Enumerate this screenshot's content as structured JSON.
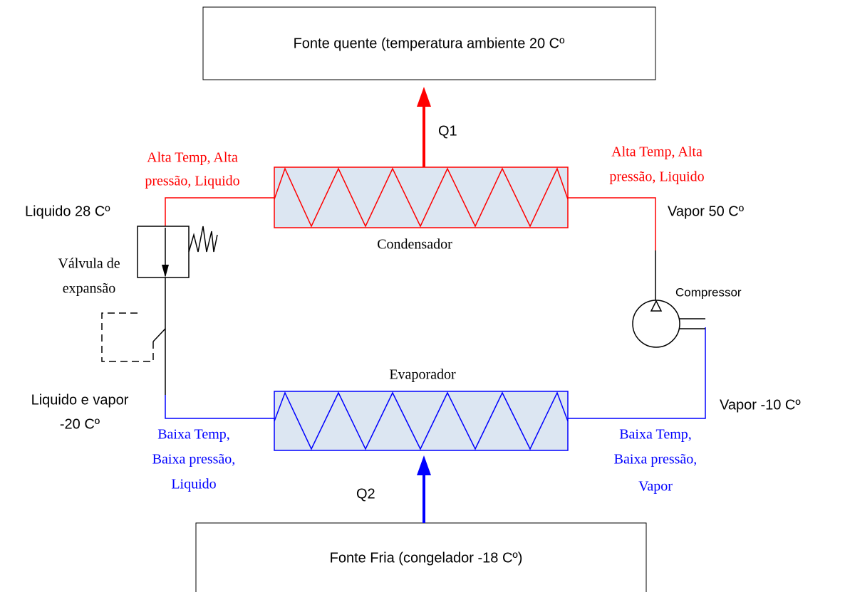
{
  "hot_source": {
    "label": "Fonte quente (temperatura ambiente 20 Cº"
  },
  "q1": "Q1",
  "condenser": {
    "label": "Condensador",
    "left_state": [
      "Alta Temp, Alta",
      "pressão, Liquido"
    ],
    "right_state": [
      "Alta Temp, Alta",
      "pressão, Liquido"
    ]
  },
  "liquid_out": "Liquido 28 Cº",
  "vapor_in": "Vapor 50 Cº",
  "valve": {
    "label": [
      "Válvula de",
      "expansão"
    ]
  },
  "compressor": {
    "label": "Compressor"
  },
  "evaporator": {
    "label": "Evaporador",
    "left_state": [
      "Baixa Temp,",
      "Baixa pressão,",
      "Liquido"
    ],
    "right_state": [
      "Baixa Temp,",
      "Baixa pressão,",
      "Vapor"
    ]
  },
  "mix_in": [
    "Liquido e vapor",
    "-20 Cº"
  ],
  "vapor_out": "Vapor -10 Cº",
  "q2": "Q2",
  "cold_source": {
    "label": "Fonte Fria (congelador -18 Cº)"
  }
}
